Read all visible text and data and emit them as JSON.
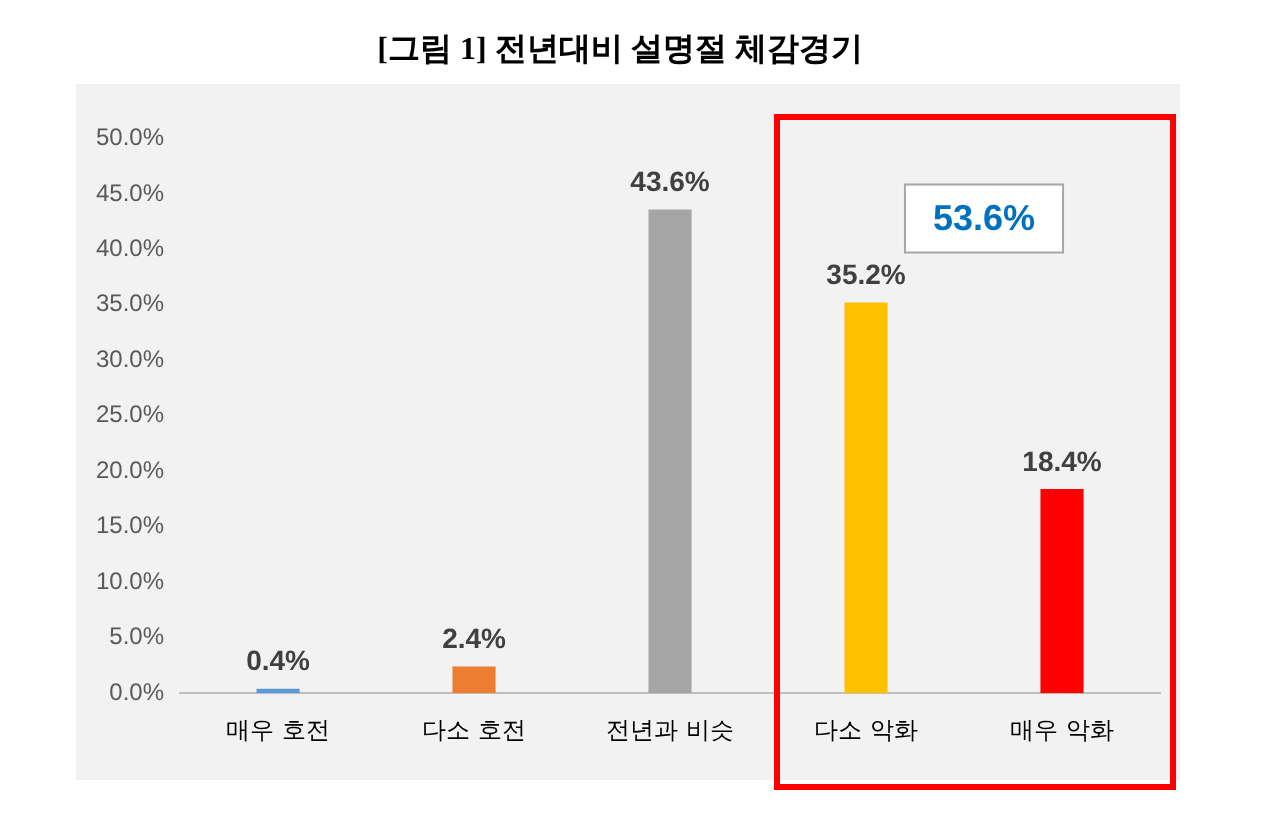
{
  "chart_data": {
    "type": "bar",
    "title": "[그림 1] 전년대비 설명절 체감경기",
    "categories": [
      "매우 호전",
      "다소 호전",
      "전년과 비슷",
      "다소 악화",
      "매우 악화"
    ],
    "values": [
      0.4,
      2.4,
      43.6,
      35.2,
      18.4
    ],
    "colors": [
      "#5b9bd5",
      "#ed7d31",
      "#a5a5a5",
      "#ffc000",
      "#ff0000"
    ],
    "value_labels": [
      "0.4%",
      "2.4%",
      "43.6%",
      "35.2%",
      "18.4%"
    ],
    "ylim": [
      0,
      50
    ],
    "yticks": [
      {
        "value": 0,
        "label": "0.0%"
      },
      {
        "value": 5,
        "label": "5.0%"
      },
      {
        "value": 10,
        "label": "10.0%"
      },
      {
        "value": 15,
        "label": "15.0%"
      },
      {
        "value": 20,
        "label": "20.0%"
      },
      {
        "value": 25,
        "label": "25.0%"
      },
      {
        "value": 30,
        "label": "30.0%"
      },
      {
        "value": 35,
        "label": "35.0%"
      },
      {
        "value": 40,
        "label": "40.0%"
      },
      {
        "value": 45,
        "label": "45.0%"
      },
      {
        "value": 50,
        "label": "50.0%"
      }
    ],
    "grid": false,
    "legend": false,
    "annotations": [
      "53.6%"
    ]
  }
}
